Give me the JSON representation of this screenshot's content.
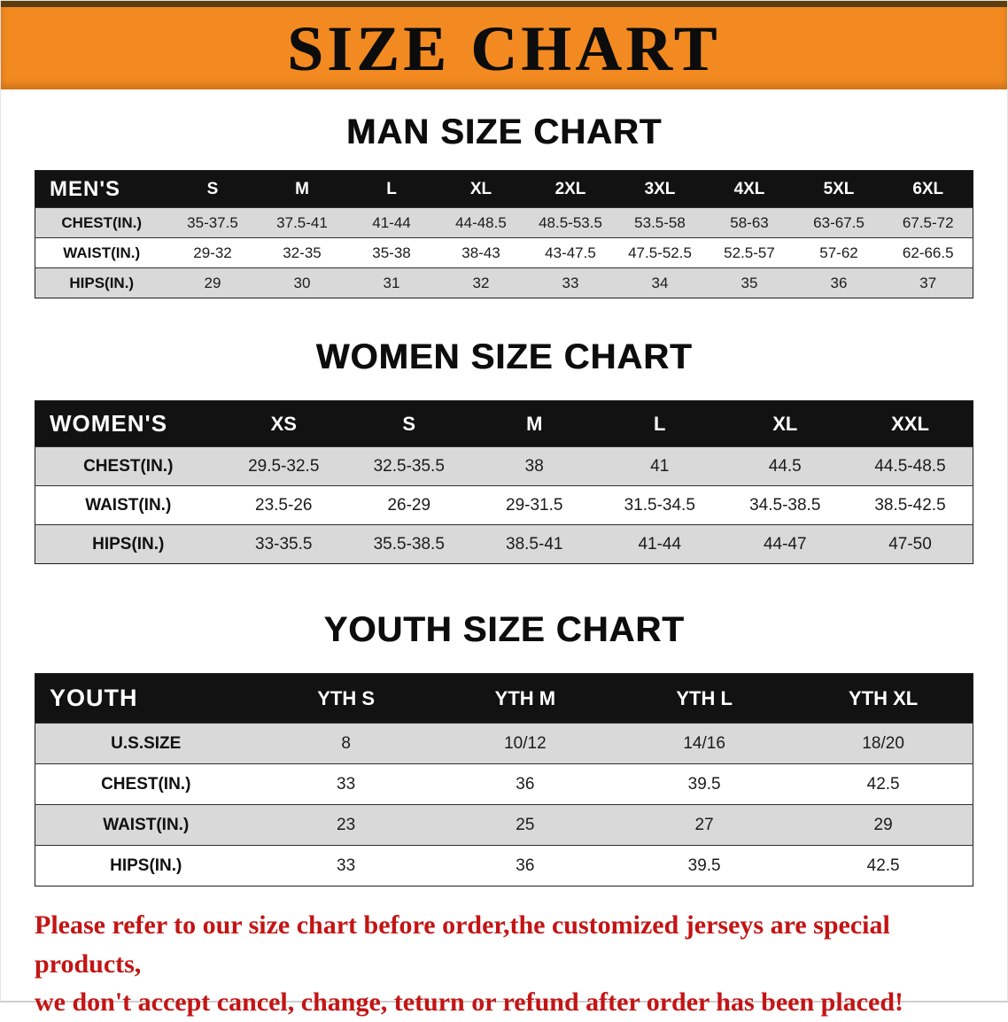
{
  "banner": {
    "title": "SIZE CHART",
    "bg_color": "#f28a21",
    "text_color": "#0c0c0c"
  },
  "sections": [
    {
      "heading": "MAN SIZE CHART",
      "table": {
        "header": [
          "MEN'S",
          "S",
          "M",
          "L",
          "XL",
          "2XL",
          "3XL",
          "4XL",
          "5XL",
          "6XL"
        ],
        "rows": [
          {
            "label": "CHEST(IN.)",
            "values": [
              "35-37.5",
              "37.5-41",
              "41-44",
              "44-48.5",
              "48.5-53.5",
              "53.5-58",
              "58-63",
              "63-67.5",
              "67.5-72"
            ]
          },
          {
            "label": "WAIST(IN.)",
            "values": [
              "29-32",
              "32-35",
              "35-38",
              "38-43",
              "43-47.5",
              "47.5-52.5",
              "52.5-57",
              "57-62",
              "62-66.5"
            ]
          },
          {
            "label": "HIPS(IN.)",
            "values": [
              "29",
              "30",
              "31",
              "32",
              "33",
              "34",
              "35",
              "36",
              "37"
            ]
          }
        ]
      }
    },
    {
      "heading": "WOMEN SIZE CHART",
      "table": {
        "header": [
          "WOMEN'S",
          "XS",
          "S",
          "M",
          "L",
          "XL",
          "XXL"
        ],
        "rows": [
          {
            "label": "CHEST(IN.)",
            "values": [
              "29.5-32.5",
              "32.5-35.5",
              "38",
              "41",
              "44.5",
              "44.5-48.5"
            ]
          },
          {
            "label": "WAIST(IN.)",
            "values": [
              "23.5-26",
              "26-29",
              "29-31.5",
              "31.5-34.5",
              "34.5-38.5",
              "38.5-42.5"
            ]
          },
          {
            "label": "HIPS(IN.)",
            "values": [
              "33-35.5",
              "35.5-38.5",
              "38.5-41",
              "41-44",
              "44-47",
              "47-50"
            ]
          }
        ]
      }
    },
    {
      "heading": "YOUTH SIZE CHART",
      "table": {
        "header": [
          "YOUTH",
          "YTH S",
          "YTH M",
          "YTH L",
          "YTH XL"
        ],
        "rows": [
          {
            "label": "U.S.SIZE",
            "values": [
              "8",
              "10/12",
              "14/16",
              "18/20"
            ]
          },
          {
            "label": "CHEST(IN.)",
            "values": [
              "33",
              "36",
              "39.5",
              "42.5"
            ]
          },
          {
            "label": "WAIST(IN.)",
            "values": [
              "23",
              "25",
              "27",
              "29"
            ]
          },
          {
            "label": "HIPS(IN.)",
            "values": [
              "33",
              "36",
              "39.5",
              "42.5"
            ]
          }
        ]
      }
    }
  ],
  "footer": {
    "line1": "Please refer to our size chart before order,the customized jerseys are special products,",
    "line2": "we don't accept cancel, change, teturn or refund after order has been placed!",
    "text_color": "#c41414"
  }
}
